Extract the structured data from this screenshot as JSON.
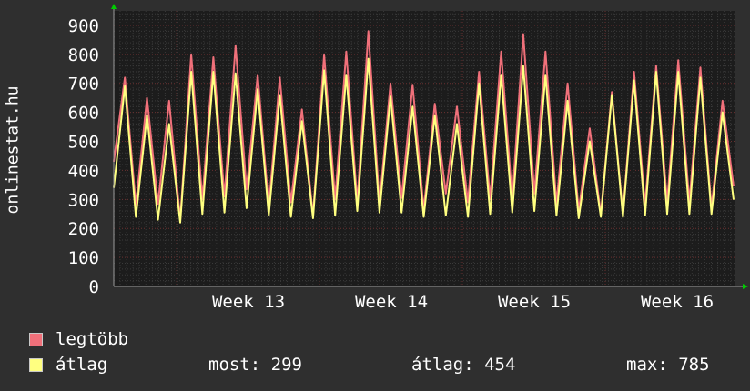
{
  "chart_data": {
    "type": "line",
    "ylabel": "onlinestat.hu",
    "ylim": [
      0,
      950
    ],
    "yticks": [
      "0",
      "100",
      "200",
      "300",
      "400",
      "500",
      "600",
      "700",
      "800",
      "900"
    ],
    "xticks": [
      "Week 13",
      "Week 14",
      "Week 15",
      "Week 16"
    ],
    "grid": true,
    "series": [
      {
        "name": "legtöbb",
        "color": "#f0707a",
        "values": [
          430,
          720,
          280,
          650,
          285,
          640,
          230,
          800,
          300,
          790,
          310,
          830,
          335,
          730,
          275,
          720,
          290,
          610,
          245,
          800,
          300,
          810,
          290,
          880,
          285,
          700,
          305,
          695,
          265,
          630,
          320,
          620,
          290,
          740,
          300,
          810,
          300,
          870,
          320,
          810,
          285,
          700,
          260,
          545,
          250,
          670,
          250,
          740,
          280,
          760,
          290,
          780,
          290,
          755,
          270,
          640,
          345
        ]
      },
      {
        "name": "átlag",
        "color": "#ffff80",
        "values": [
          340,
          690,
          240,
          590,
          230,
          560,
          220,
          740,
          250,
          740,
          255,
          735,
          270,
          680,
          245,
          660,
          240,
          570,
          235,
          745,
          245,
          730,
          260,
          785,
          255,
          655,
          255,
          620,
          240,
          590,
          245,
          560,
          240,
          700,
          250,
          730,
          255,
          760,
          260,
          730,
          245,
          640,
          235,
          500,
          240,
          660,
          240,
          710,
          245,
          740,
          250,
          740,
          250,
          720,
          250,
          600,
          299
        ]
      }
    ]
  },
  "legend": {
    "series1_label": "legtöbb",
    "series2_label": "átlag",
    "series1_color": "#f0707a",
    "series2_color": "#ffff80"
  },
  "stats": {
    "most": "most: 299",
    "atlag": "átlag: 454",
    "max": "max: 785"
  }
}
